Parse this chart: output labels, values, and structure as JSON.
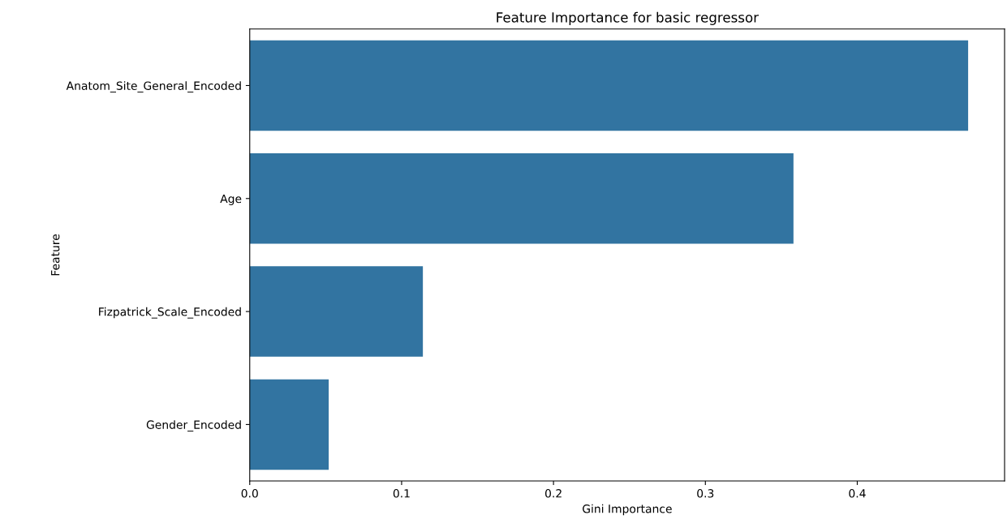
{
  "chart_data": {
    "type": "bar",
    "orientation": "horizontal",
    "title": "Feature Importance for basic regressor",
    "xlabel": "Gini Importance",
    "ylabel": "Feature",
    "categories": [
      "Anatom_Site_General_Encoded",
      "Age",
      "Fizpatrick_Scale_Encoded",
      "Gender_Encoded"
    ],
    "values": [
      0.473,
      0.358,
      0.114,
      0.052
    ],
    "color": "#3274a1",
    "xlim": [
      0,
      0.497
    ],
    "xticks": [
      {
        "value": 0,
        "label": "0.0"
      },
      0.1,
      0.2,
      0.3,
      0.4
    ],
    "grid": false
  }
}
